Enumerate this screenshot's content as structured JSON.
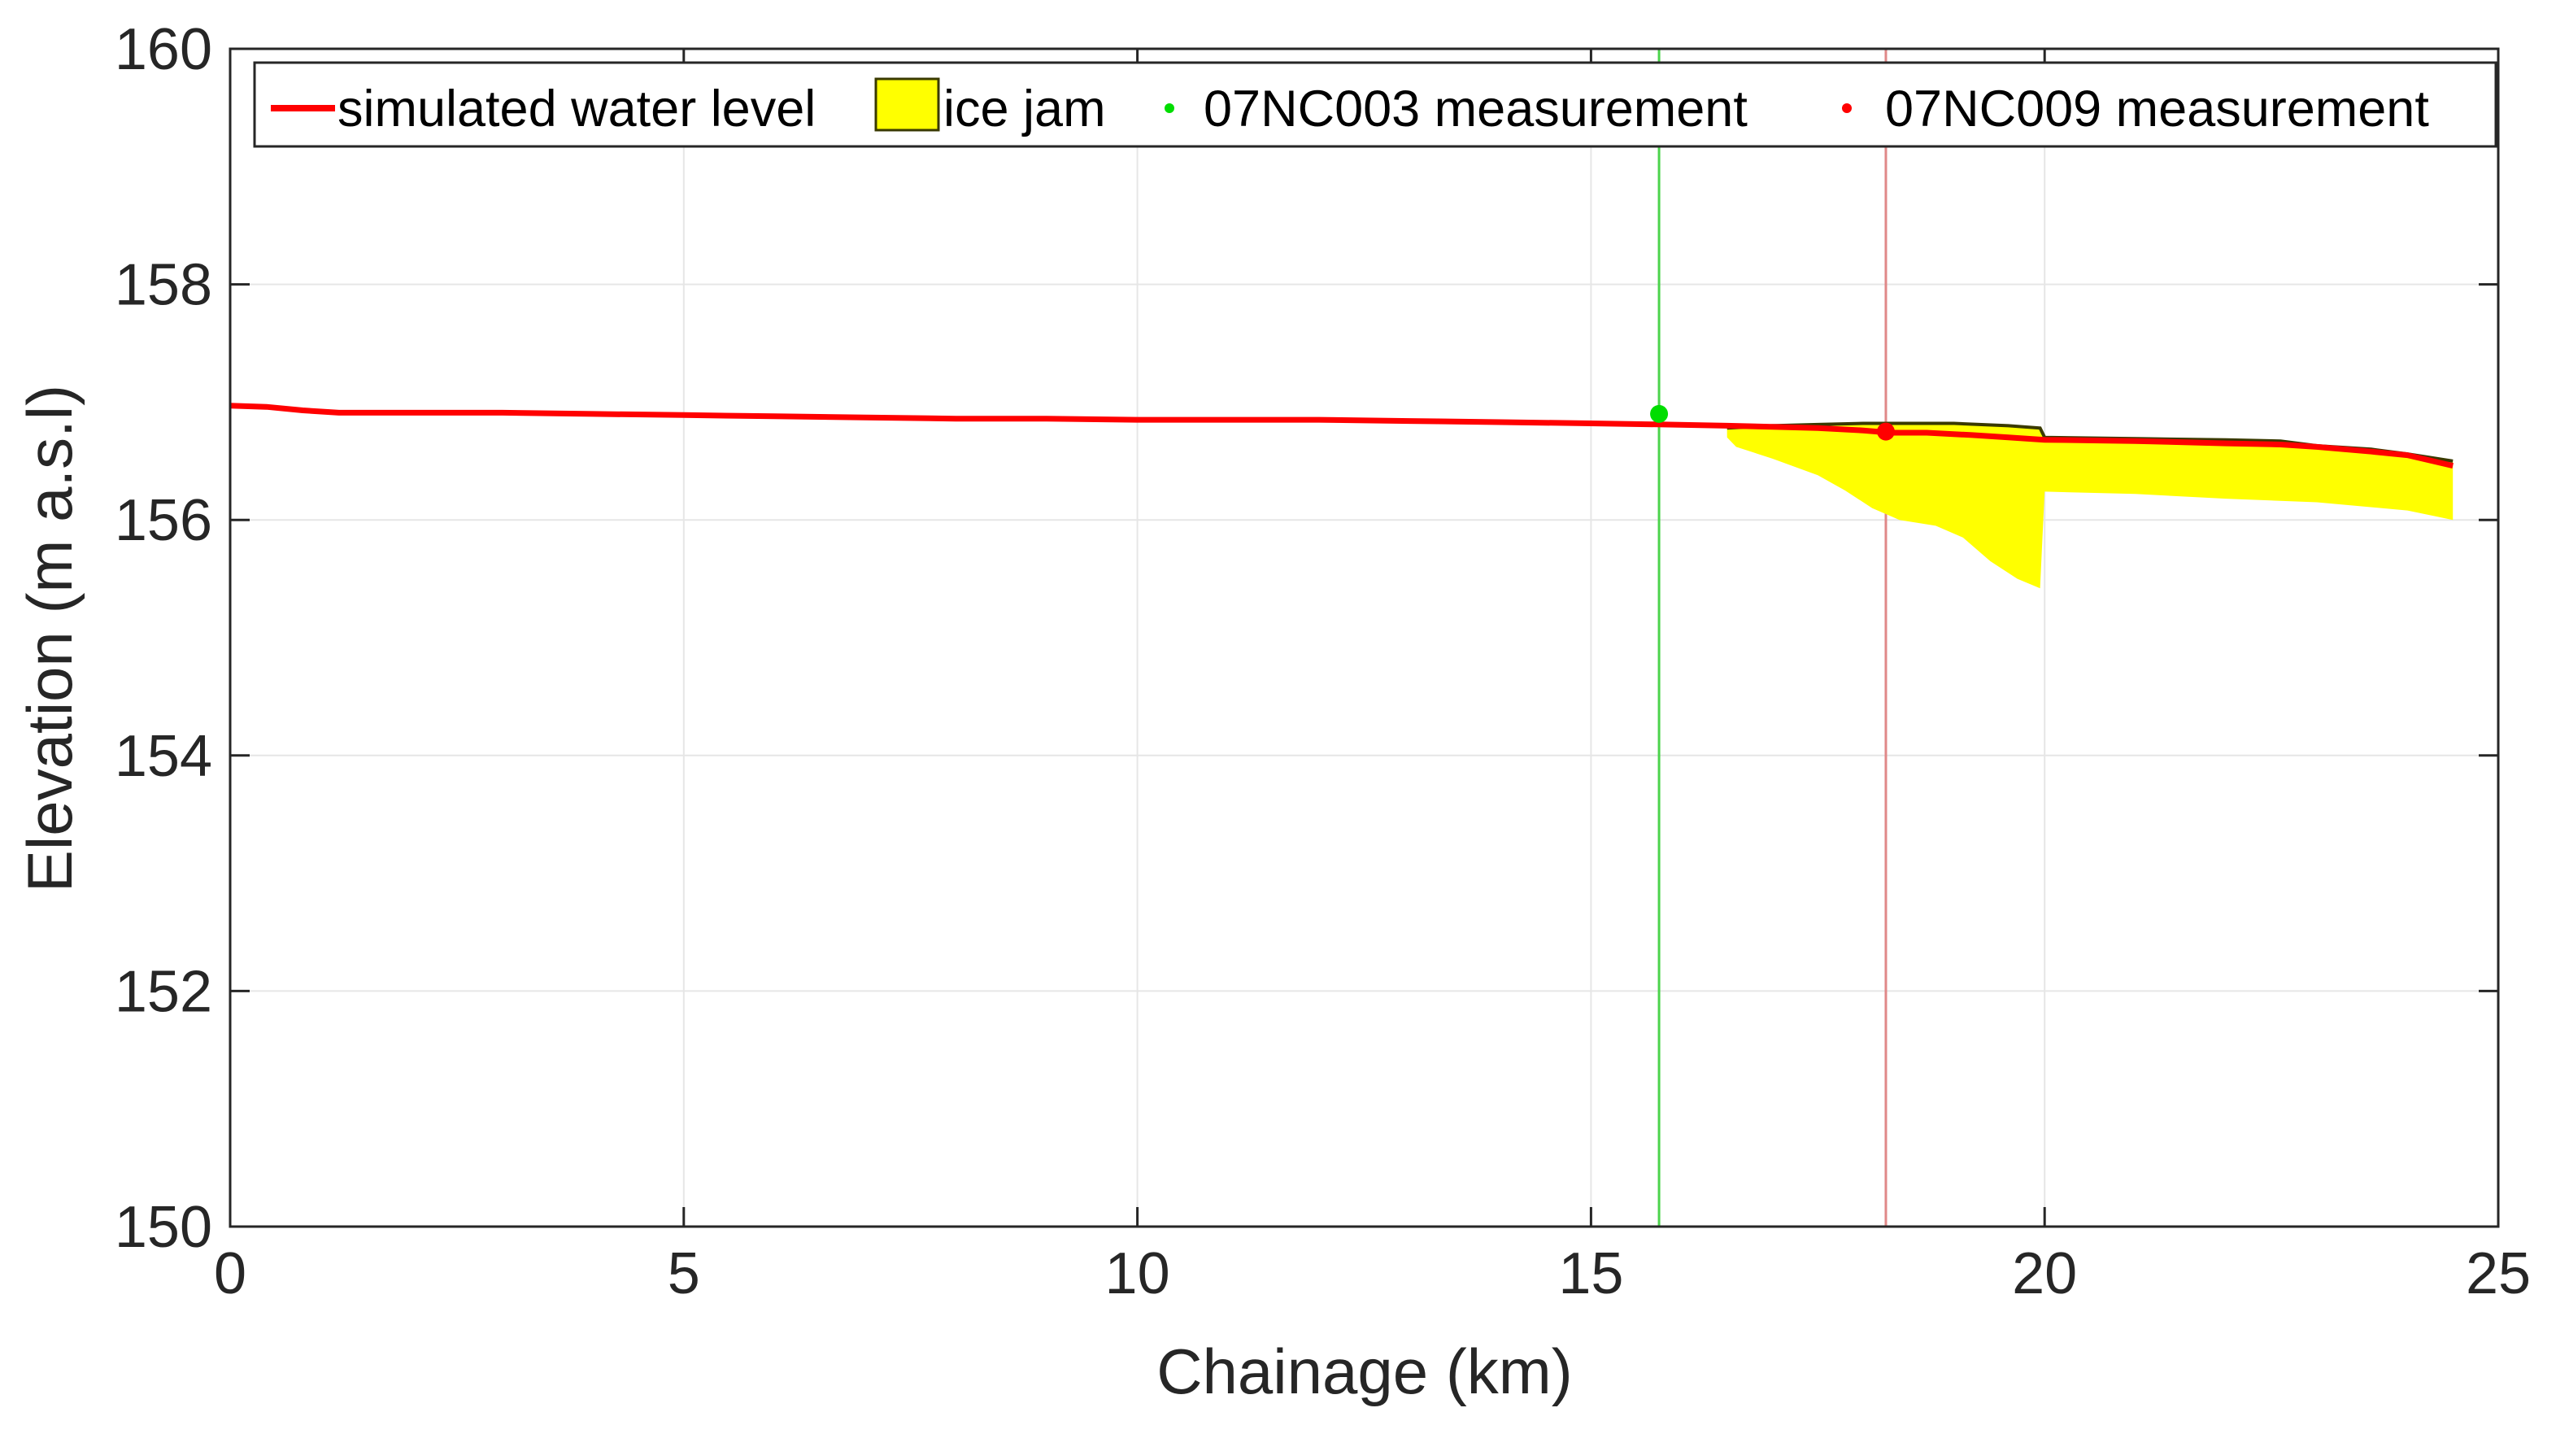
{
  "chart_data": {
    "type": "line",
    "xlabel": "Chainage (km)",
    "ylabel": "Elevation (m a.s.l)",
    "xlim": [
      0,
      25
    ],
    "ylim": [
      150,
      160
    ],
    "x_ticks": [
      "0",
      "5",
      "10",
      "15",
      "20",
      "25"
    ],
    "y_ticks": [
      "150",
      "152",
      "154",
      "156",
      "158",
      "160"
    ],
    "grid": true,
    "legend_position": "top",
    "legend": {
      "water_level": "simulated water level",
      "ice_jam": "ice jam",
      "m1": "07NC003 measurement",
      "m2": "07NC009 measurement"
    },
    "colors": {
      "water_level": "#ff0000",
      "ice_fill": "#ffff00",
      "ice_edge": "#3a3a00",
      "m1": "#00dd00",
      "m2": "#ff0000",
      "m1_line": "#4cd44c",
      "m2_line": "#e08888",
      "grid": "#e6e6e6",
      "axis": "#262626"
    },
    "series": [
      {
        "name": "simulated water level",
        "x": [
          0,
          0.4,
          0.8,
          1.2,
          2,
          3,
          4,
          5,
          6,
          7,
          8,
          9,
          10,
          11,
          12,
          13,
          14,
          15,
          15.8,
          16.5,
          17,
          17.5,
          18,
          18.3,
          18.7,
          19.2,
          19.6,
          20,
          21,
          22,
          22.6,
          23,
          23.6,
          24,
          24.5
        ],
        "y": [
          156.97,
          156.96,
          156.93,
          156.91,
          156.91,
          156.91,
          156.9,
          156.89,
          156.88,
          156.87,
          156.86,
          156.86,
          156.85,
          156.85,
          156.85,
          156.84,
          156.83,
          156.82,
          156.81,
          156.8,
          156.79,
          156.78,
          156.76,
          156.74,
          156.74,
          156.72,
          156.7,
          156.68,
          156.67,
          156.65,
          156.64,
          156.62,
          156.58,
          156.55,
          156.46
        ]
      },
      {
        "name": "ice jam",
        "type": "area",
        "x_top": [
          16.5,
          17,
          17.5,
          18,
          18.5,
          19,
          19.6,
          19.95,
          20,
          21,
          22,
          22.6,
          23,
          23.6,
          24,
          24.5
        ],
        "y_top": [
          156.78,
          156.8,
          156.81,
          156.82,
          156.82,
          156.82,
          156.8,
          156.78,
          156.7,
          156.69,
          156.68,
          156.67,
          156.63,
          156.6,
          156.56,
          156.5
        ],
        "x_bottom": [
          16.5,
          16.6,
          17,
          17.5,
          17.8,
          18.1,
          18.4,
          18.8,
          19.1,
          19.4,
          19.7,
          19.95,
          20,
          21,
          22,
          23,
          24,
          24.5
        ],
        "y_bottom": [
          156.7,
          156.62,
          156.52,
          156.38,
          156.25,
          156.1,
          156.0,
          155.95,
          155.85,
          155.65,
          155.5,
          155.42,
          156.24,
          156.22,
          156.18,
          156.15,
          156.08,
          156.0
        ]
      },
      {
        "name": "07NC003 measurement",
        "type": "scatter",
        "x": [
          15.75
        ],
        "y": [
          156.9
        ]
      },
      {
        "name": "07NC009 measurement",
        "type": "scatter",
        "x": [
          18.25
        ],
        "y": [
          156.75
        ]
      }
    ]
  }
}
